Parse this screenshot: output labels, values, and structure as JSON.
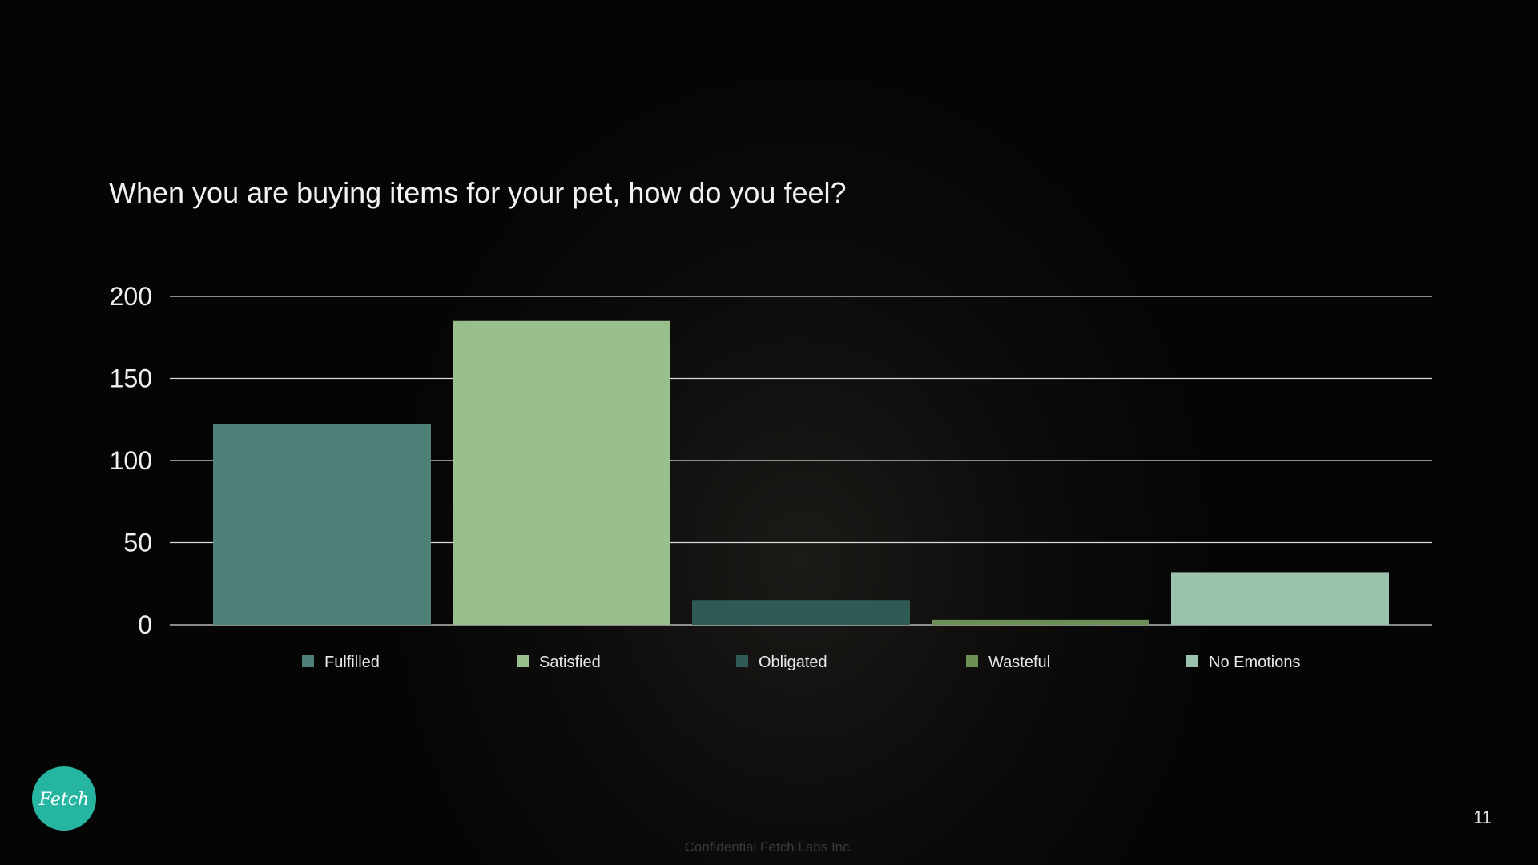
{
  "slide": {
    "title": "When you are buying items for your pet, how do you feel?",
    "footer": "Confidential Fetch Labs Inc.",
    "page_number": "11",
    "logo_text": "Fetch"
  },
  "colors": {
    "background": "#050505",
    "logo_bg": "#25b5a0",
    "grid": "#d9d9d9"
  },
  "chart_data": {
    "type": "bar",
    "title": "",
    "xlabel": "",
    "ylabel": "",
    "ylim": [
      0,
      200
    ],
    "yticks": [
      0,
      50,
      100,
      150,
      200
    ],
    "grid": true,
    "legend_position": "bottom",
    "series": [
      {
        "name": "Fulfilled",
        "values": [
          122
        ],
        "color": "#4f8179"
      },
      {
        "name": "Satisfied",
        "values": [
          185
        ],
        "color": "#99c08c"
      },
      {
        "name": "Obligated",
        "values": [
          15
        ],
        "color": "#2f5a56"
      },
      {
        "name": "Wasteful",
        "values": [
          3
        ],
        "color": "#6b8f55"
      },
      {
        "name": "No Emotions",
        "values": [
          32
        ],
        "color": "#9bc2ad"
      }
    ]
  }
}
